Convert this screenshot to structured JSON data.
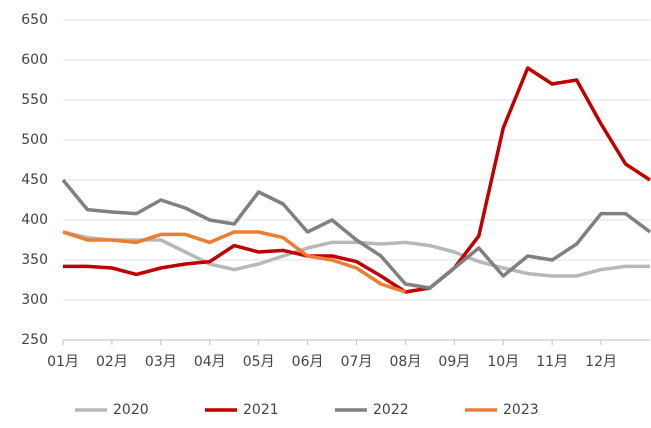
{
  "chart_data": {
    "type": "line",
    "x": [
      1,
      1.5,
      2,
      2.5,
      3,
      3.5,
      4,
      4.5,
      5,
      5.5,
      6,
      6.5,
      7,
      7.5,
      8,
      8.5,
      9,
      9.5,
      10,
      10.5,
      11,
      11.5,
      12,
      12.5,
      13
    ],
    "xlim": [
      1,
      13
    ],
    "xticks": [
      {
        "value": 1,
        "label": "01月"
      },
      {
        "value": 2,
        "label": "02月"
      },
      {
        "value": 3,
        "label": "03月"
      },
      {
        "value": 4,
        "label": "04月"
      },
      {
        "value": 5,
        "label": "05月"
      },
      {
        "value": 6,
        "label": "06月"
      },
      {
        "value": 7,
        "label": "07月"
      },
      {
        "value": 8,
        "label": "08月"
      },
      {
        "value": 9,
        "label": "09月"
      },
      {
        "value": 10,
        "label": "10月"
      },
      {
        "value": 11,
        "label": "11月"
      },
      {
        "value": 12,
        "label": "12月"
      }
    ],
    "ylim": [
      250,
      650
    ],
    "yticks": [
      250,
      300,
      350,
      400,
      450,
      500,
      550,
      600,
      650
    ],
    "grid": true,
    "legend": "bottom",
    "series": [
      {
        "name": "2020",
        "color": "#b8b8b8",
        "values": [
          385,
          378,
          375,
          375,
          375,
          360,
          345,
          338,
          345,
          355,
          365,
          372,
          372,
          370,
          372,
          368,
          360,
          348,
          340,
          333,
          330,
          330,
          338,
          342,
          342
        ]
      },
      {
        "name": "2021",
        "color": "#c00000",
        "values": [
          342,
          342,
          340,
          332,
          340,
          345,
          348,
          368,
          360,
          362,
          355,
          355,
          348,
          330,
          310,
          315,
          340,
          380,
          515,
          590,
          570,
          575,
          520,
          470,
          450
        ]
      },
      {
        "name": "2022",
        "color": "#808080",
        "values": [
          450,
          413,
          410,
          408,
          425,
          415,
          400,
          395,
          435,
          420,
          385,
          400,
          375,
          355,
          320,
          315,
          340,
          365,
          330,
          355,
          350,
          370,
          408,
          408,
          385
        ]
      },
      {
        "name": "2023",
        "color": "#ed7d31",
        "values": [
          385,
          375,
          375,
          372,
          382,
          382,
          372,
          385,
          385,
          378,
          355,
          350,
          340,
          320,
          310,
          null,
          null,
          null,
          null,
          null,
          null,
          null,
          null,
          null,
          null
        ]
      }
    ]
  }
}
